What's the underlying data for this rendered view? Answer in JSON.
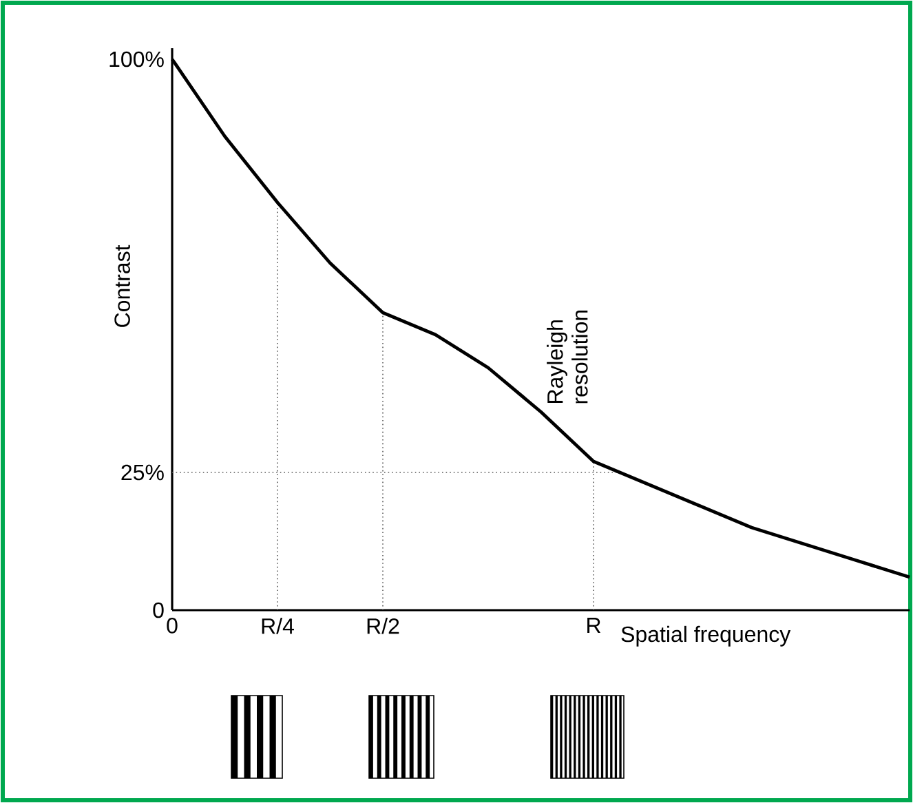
{
  "chart_data": {
    "type": "line",
    "xlabel": "Spatial frequency",
    "ylabel": "Contrast",
    "categories": [
      "0",
      null,
      "R/4",
      null,
      "R/2",
      null,
      null,
      null,
      "R",
      null,
      null,
      null,
      null,
      null,
      null
    ],
    "series": [
      {
        "color": "#000000",
        "values": [
          100,
          86,
          74,
          63,
          54,
          50,
          44,
          36,
          27,
          23,
          19,
          15,
          12,
          9,
          6
        ]
      }
    ],
    "ylim": [
      0,
      102
    ],
    "yticks": [
      0,
      {
        "value": 25,
        "label": "25%"
      },
      {
        "value": 100,
        "label": "100%"
      }
    ],
    "ref_lines": [
      {
        "axis": "x",
        "value": "R/4",
        "line_style": "dotted"
      },
      {
        "axis": "x",
        "value": "R/2",
        "line_style": "dotted"
      },
      {
        "axis": "x",
        "value": "R",
        "line_style": "dotted"
      },
      {
        "axis": "y",
        "value": 25,
        "line_style": "dotted"
      }
    ],
    "annotations": [
      {
        "text": "Rayleigh resolution",
        "x": "R",
        "y": 27
      }
    ]
  }
}
